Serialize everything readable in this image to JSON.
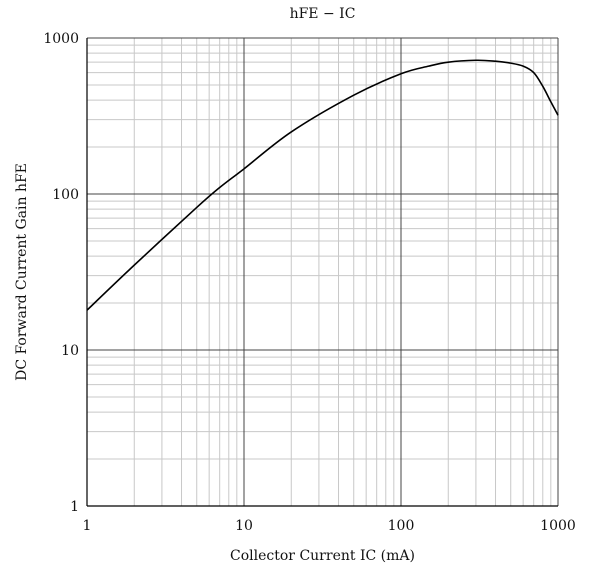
{
  "chart_data": {
    "type": "line",
    "title": "hFE − IC",
    "xlabel": "Collector Current IC (mA)",
    "ylabel": "DC Forward Current Gain hFE",
    "x_scale": "log",
    "y_scale": "log",
    "xlim": [
      1,
      1000
    ],
    "ylim": [
      1,
      1000
    ],
    "x_ticks": [
      1,
      10,
      100,
      1000
    ],
    "y_ticks": [
      1,
      10,
      100,
      1000
    ],
    "x_tick_labels": [
      "1",
      "10",
      "100",
      "1000"
    ],
    "y_tick_labels": [
      "1",
      "10",
      "100",
      "1000"
    ],
    "grid": true,
    "colors": {
      "curve": "#000000",
      "major_grid": "#444444",
      "minor_grid": "#c8c8c8"
    },
    "series": [
      {
        "x": [
          1,
          2,
          5,
          7,
          10,
          20,
          50,
          100,
          150,
          200,
          300,
          400,
          500,
          600,
          700,
          800,
          900,
          1000
        ],
        "y": [
          18,
          35,
          82,
          110,
          145,
          250,
          430,
          590,
          660,
          700,
          720,
          710,
          690,
          660,
          600,
          490,
          390,
          320
        ]
      }
    ]
  }
}
